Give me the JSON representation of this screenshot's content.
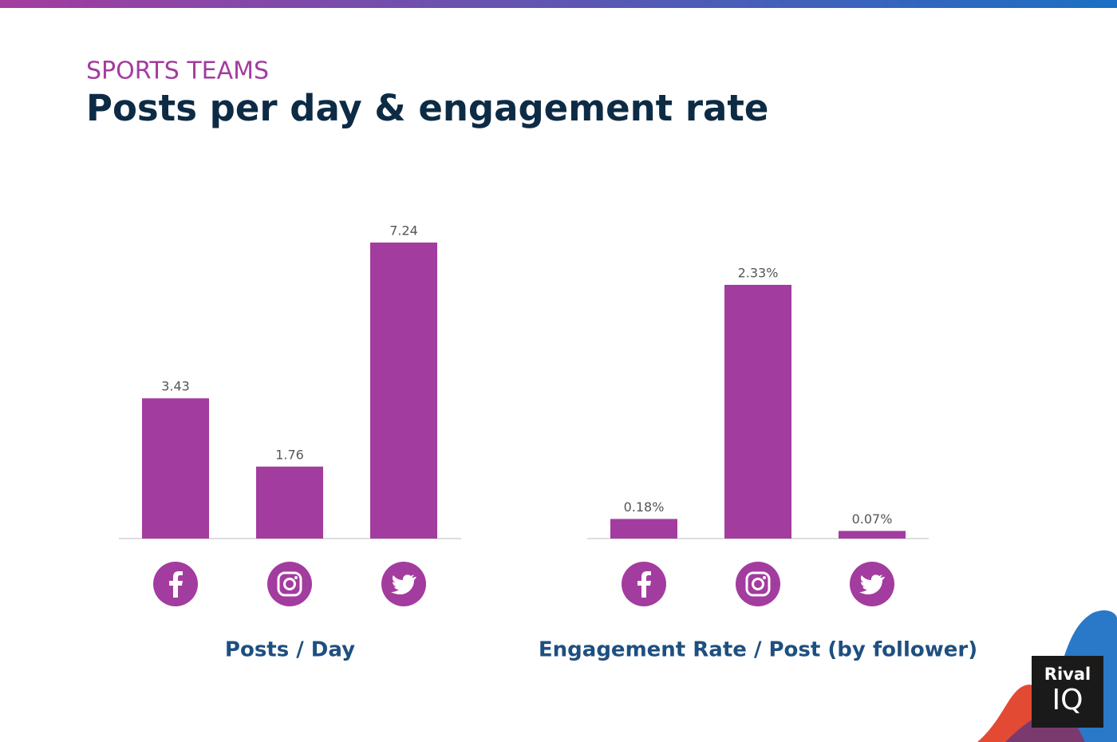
{
  "header": {
    "subtitle": "SPORTS TEAMS",
    "title": "Posts per day & engagement rate"
  },
  "chart_data": [
    {
      "type": "bar",
      "categories": [
        null,
        null,
        null
      ],
      "values": [
        3.43,
        1.76,
        7.24
      ],
      "color": "#a33c9f",
      "x_label": "Posts / Day"
    },
    {
      "type": "bar",
      "categories": [
        null,
        null,
        null
      ],
      "values": [
        0.18,
        2.33,
        0.07
      ],
      "value_labels": [
        "0.18%",
        "2.33%",
        "0.07%"
      ],
      "color": "#a33c9f",
      "x_label": "Engagement Rate / Post (by follower)"
    }
  ],
  "brand": {
    "top": "Rival",
    "bottom": "IQ"
  }
}
